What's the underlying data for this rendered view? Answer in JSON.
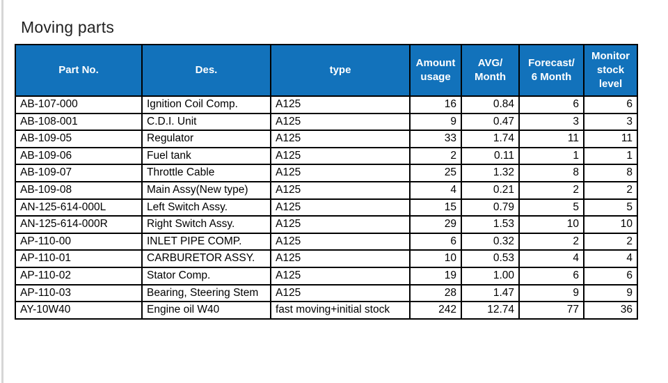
{
  "page": {
    "title": "Moving parts"
  },
  "colors": {
    "header_bg": "#1272BB",
    "header_text": "#FFFFFF",
    "grid_line": "#000000",
    "body_bg": "#FFFFFF",
    "body_text": "#000000"
  },
  "table": {
    "columns": [
      {
        "label": "Part No.",
        "align": "left"
      },
      {
        "label": "Des.",
        "align": "left"
      },
      {
        "label": "type",
        "align": "left"
      },
      {
        "label": "Amount usage",
        "align": "right"
      },
      {
        "label": "AVG/ Month",
        "align": "right"
      },
      {
        "label": "Forecast/ 6 Month",
        "align": "right"
      },
      {
        "label": "Monitor stock level",
        "align": "right"
      }
    ],
    "rows": [
      [
        "AB-107-000",
        "Ignition Coil Comp.",
        "A125",
        "16",
        "0.84",
        "6",
        "6"
      ],
      [
        "AB-108-001",
        "C.D.I. Unit",
        "A125",
        "9",
        "0.47",
        "3",
        "3"
      ],
      [
        "AB-109-05",
        "Regulator",
        "A125",
        "33",
        "1.74",
        "11",
        "11"
      ],
      [
        "AB-109-06",
        "Fuel tank",
        "A125",
        "2",
        "0.11",
        "1",
        "1"
      ],
      [
        "AB-109-07",
        "Throttle Cable",
        "A125",
        "25",
        "1.32",
        "8",
        "8"
      ],
      [
        "AB-109-08",
        "Main Assy(New type)",
        "A125",
        "4",
        "0.21",
        "2",
        "2"
      ],
      [
        "AN-125-614-000L",
        "Left Switch Assy.",
        "A125",
        "15",
        "0.79",
        "5",
        "5"
      ],
      [
        "AN-125-614-000R",
        "Right Switch Assy.",
        "A125",
        "29",
        "1.53",
        "10",
        "10"
      ],
      [
        "AP-110-00",
        "INLET PIPE COMP.",
        "A125",
        "6",
        "0.32",
        "2",
        "2"
      ],
      [
        "AP-110-01",
        "CARBURETOR ASSY.",
        "A125",
        "10",
        "0.53",
        "4",
        "4"
      ],
      [
        "AP-110-02",
        "Stator Comp.",
        "A125",
        "19",
        "1.00",
        "6",
        "6"
      ],
      [
        "AP-110-03",
        "Bearing, Steering Stem",
        "A125",
        "28",
        "1.47",
        "9",
        "9"
      ],
      [
        "AY-10W40",
        "Engine oil W40",
        "fast moving+initial stock",
        "242",
        "12.74",
        "77",
        "36"
      ]
    ]
  }
}
